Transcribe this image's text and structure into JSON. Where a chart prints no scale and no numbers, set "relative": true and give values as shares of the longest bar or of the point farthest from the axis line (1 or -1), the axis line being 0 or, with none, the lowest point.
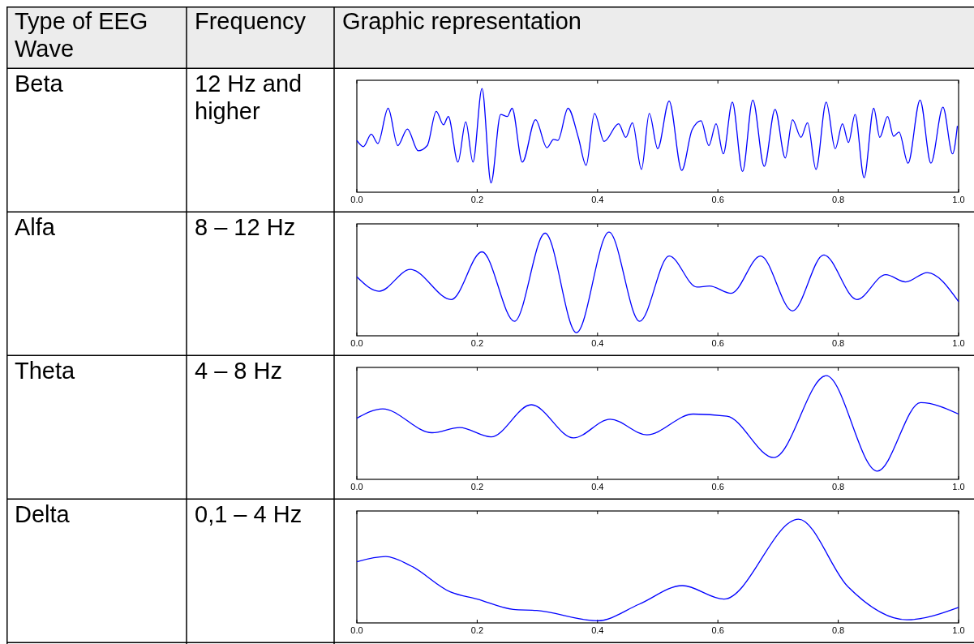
{
  "chart_data": [
    {
      "type": "other",
      "annotations": [
        "Type of EEG Wave",
        "Frequency",
        "Graphic representation",
        "Beta",
        "12 Hz and higher",
        "Alfa",
        "8 – 12 Hz",
        "Theta",
        "4 – 8 Hz",
        "Delta",
        "0,1 – 4 Hz"
      ]
    },
    {
      "type": "line",
      "color": "#0000ff",
      "relative": true,
      "tick_labels": "x",
      "xlim": [
        0,
        1
      ],
      "xticks": [
        {
          "value": 0,
          "label": "0.0"
        },
        {
          "value": 0.2,
          "label": "0.2"
        },
        {
          "value": 0.4,
          "label": "0.4"
        },
        {
          "value": 0.6,
          "label": "0.6"
        },
        {
          "value": 0.8,
          "label": "0.8"
        },
        {
          "value": 1,
          "label": "1.0"
        }
      ],
      "x": [
        0,
        0.011,
        0.024,
        0.035,
        0.052,
        0.068,
        0.084,
        0.102,
        0.117,
        0.132,
        0.144,
        0.152,
        0.168,
        0.181,
        0.193,
        0.208,
        0.223,
        0.239,
        0.25,
        0.258,
        0.275,
        0.297,
        0.316,
        0.327,
        0.334,
        0.351,
        0.368,
        0.381,
        0.395,
        0.411,
        0.435,
        0.447,
        0.458,
        0.473,
        0.486,
        0.5,
        0.519,
        0.54,
        0.557,
        0.572,
        0.585,
        0.597,
        0.609,
        0.624,
        0.641,
        0.658,
        0.677,
        0.695,
        0.712,
        0.724,
        0.738,
        0.749,
        0.763,
        0.78,
        0.795,
        0.807,
        0.817,
        0.828,
        0.843,
        0.859,
        0.869,
        0.882,
        0.892,
        0.901,
        0.916,
        0.936,
        0.954,
        0.974,
        0.99,
        0.998
      ],
      "values": [
        0.5,
        0.44,
        0.56,
        0.47,
        0.81,
        0.45,
        0.61,
        0.4,
        0.45,
        0.78,
        0.65,
        0.73,
        0.29,
        0.68,
        0.29,
        1,
        0.09,
        0.75,
        0.73,
        0.81,
        0.29,
        0.7,
        0.43,
        0.51,
        0.5,
        0.81,
        0.53,
        0.26,
        0.76,
        0.49,
        0.66,
        0.53,
        0.67,
        0.22,
        0.76,
        0.42,
        0.88,
        0.21,
        0.6,
        0.69,
        0.45,
        0.66,
        0.37,
        0.87,
        0.2,
        0.89,
        0.25,
        0.8,
        0.33,
        0.7,
        0.53,
        0.67,
        0.22,
        0.87,
        0.42,
        0.66,
        0.48,
        0.75,
        0.14,
        0.81,
        0.53,
        0.73,
        0.54,
        0.58,
        0.28,
        0.89,
        0.28,
        0.82,
        0.37,
        0.64
      ]
    },
    {
      "type": "line",
      "color": "#0000ff",
      "relative": true,
      "tick_labels": "x",
      "xlim": [
        0,
        1
      ],
      "xticks": [
        {
          "value": 0,
          "label": "0.0"
        },
        {
          "value": 0.2,
          "label": "0.2"
        },
        {
          "value": 0.4,
          "label": "0.4"
        },
        {
          "value": 0.6,
          "label": "0.6"
        },
        {
          "value": 0.8,
          "label": "0.8"
        },
        {
          "value": 1,
          "label": "1.0"
        }
      ],
      "x": [
        0,
        0.037,
        0.089,
        0.157,
        0.208,
        0.262,
        0.313,
        0.365,
        0.419,
        0.47,
        0.519,
        0.565,
        0.586,
        0.622,
        0.671,
        0.724,
        0.776,
        0.831,
        0.879,
        0.912,
        0.948,
        1
      ],
      "values": [
        0.57,
        0.43,
        0.64,
        0.35,
        0.81,
        0.14,
        0.99,
        0.03,
        1,
        0.14,
        0.77,
        0.47,
        0.48,
        0.41,
        0.77,
        0.24,
        0.78,
        0.35,
        0.59,
        0.52,
        0.61,
        0.33
      ]
    },
    {
      "type": "line",
      "color": "#0000ff",
      "relative": true,
      "tick_labels": "x",
      "xlim": [
        0,
        1
      ],
      "xticks": [
        {
          "value": 0,
          "label": "0.0"
        },
        {
          "value": 0.2,
          "label": "0.2"
        },
        {
          "value": 0.4,
          "label": "0.4"
        },
        {
          "value": 0.6,
          "label": "0.6"
        },
        {
          "value": 0.8,
          "label": "0.8"
        },
        {
          "value": 1,
          "label": "1.0"
        }
      ],
      "x": [
        0,
        0.043,
        0.125,
        0.171,
        0.223,
        0.29,
        0.36,
        0.421,
        0.482,
        0.559,
        0.615,
        0.693,
        0.78,
        0.865,
        0.937,
        1
      ],
      "values": [
        0.59,
        0.68,
        0.45,
        0.5,
        0.41,
        0.72,
        0.4,
        0.58,
        0.43,
        0.63,
        0.61,
        0.21,
        1,
        0.08,
        0.74,
        0.63
      ]
    },
    {
      "type": "line",
      "color": "#0000ff",
      "relative": true,
      "tick_labels": "x",
      "xlim": [
        0,
        1
      ],
      "xticks": [
        {
          "value": 0,
          "label": "0.0"
        },
        {
          "value": 0.2,
          "label": "0.2"
        },
        {
          "value": 0.4,
          "label": "0.4"
        },
        {
          "value": 0.6,
          "label": "0.6"
        },
        {
          "value": 0.8,
          "label": "0.8"
        },
        {
          "value": 1,
          "label": "1.0"
        }
      ],
      "x": [
        0,
        0.048,
        0.09,
        0.155,
        0.2,
        0.26,
        0.299,
        0.4,
        0.469,
        0.541,
        0.61,
        0.734,
        0.816,
        0.914,
        1
      ],
      "values": [
        0.59,
        0.64,
        0.55,
        0.3,
        0.23,
        0.13,
        0.12,
        0.02,
        0.18,
        0.36,
        0.23,
        1,
        0.35,
        0.03,
        0.15
      ]
    }
  ]
}
